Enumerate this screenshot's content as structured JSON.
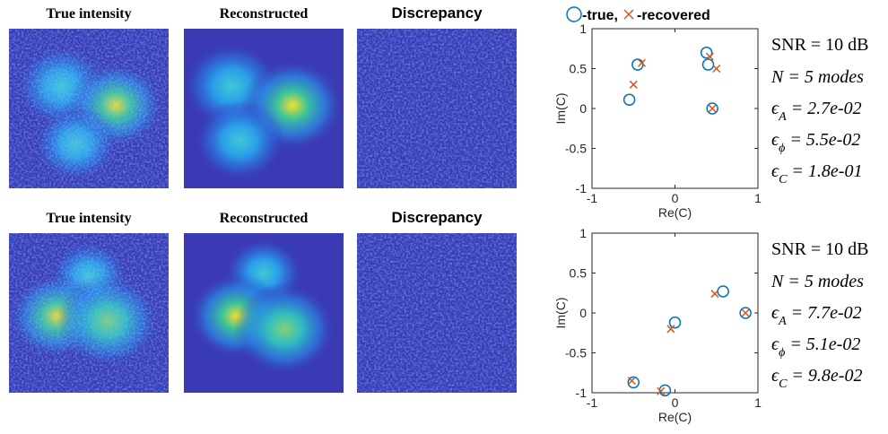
{
  "chart_data": [
    {
      "type": "scatter",
      "image_titles": [
        "True intensity",
        "Reconstructed",
        "Discrepancy"
      ],
      "xlabel": "Re(C)",
      "ylabel": "Im(C)",
      "xlim": [
        -1,
        1
      ],
      "xticks": [
        -1,
        0,
        1
      ],
      "ylim": [
        -1,
        1
      ],
      "yticks": [
        -1,
        -0.5,
        0,
        0.5,
        1
      ],
      "series": [
        {
          "name": "-true,",
          "color": "#0072bd",
          "marker": "circle",
          "x": [
            -0.55,
            -0.45,
            0.38,
            0.4,
            0.45
          ],
          "y": [
            0.11,
            0.55,
            0.7,
            0.55,
            0.0
          ]
        },
        {
          "name": "-recovered",
          "color": "#d95319",
          "marker": "cross",
          "x": [
            -0.5,
            -0.4,
            0.42,
            0.5,
            0.45
          ],
          "y": [
            0.3,
            0.57,
            0.65,
            0.5,
            0.0
          ]
        }
      ],
      "annotations": [
        [
          "SNR = 10 dB"
        ],
        [
          "N = 5 modes"
        ],
        [
          "ϵ",
          "A",
          " = 2.7e-02"
        ],
        [
          "ϵ",
          "ϕ",
          " = 5.5e-02"
        ],
        [
          "ϵ",
          "C",
          " = 1.8e-01"
        ]
      ]
    },
    {
      "type": "scatter",
      "image_titles": [
        "True intensity",
        "Reconstructed",
        "Discrepancy"
      ],
      "xlabel": "Re(C)",
      "ylabel": "Im(C)",
      "xlim": [
        -1,
        1
      ],
      "xticks": [
        -1,
        0,
        1
      ],
      "ylim": [
        -1,
        1
      ],
      "yticks": [
        -1,
        -0.5,
        0,
        0.5,
        1
      ],
      "series": [
        {
          "color": "#0072bd",
          "marker": "circle",
          "x": [
            -0.5,
            -0.12,
            0.0,
            0.58,
            0.85
          ],
          "y": [
            -0.87,
            -0.97,
            -0.12,
            0.27,
            0.0
          ]
        },
        {
          "color": "#d95319",
          "marker": "cross",
          "x": [
            -0.52,
            -0.17,
            -0.05,
            0.48,
            0.85
          ],
          "y": [
            -0.85,
            -0.98,
            -0.2,
            0.24,
            0.0
          ]
        }
      ],
      "annotations": [
        [
          "SNR = 10 dB"
        ],
        [
          "N = 5 modes"
        ],
        [
          "ϵ",
          "A",
          " = 7.7e-02"
        ],
        [
          "ϵ",
          "ϕ",
          " = 5.1e-02"
        ],
        [
          "ϵ",
          "C",
          " = 9.8e-02"
        ]
      ]
    }
  ]
}
